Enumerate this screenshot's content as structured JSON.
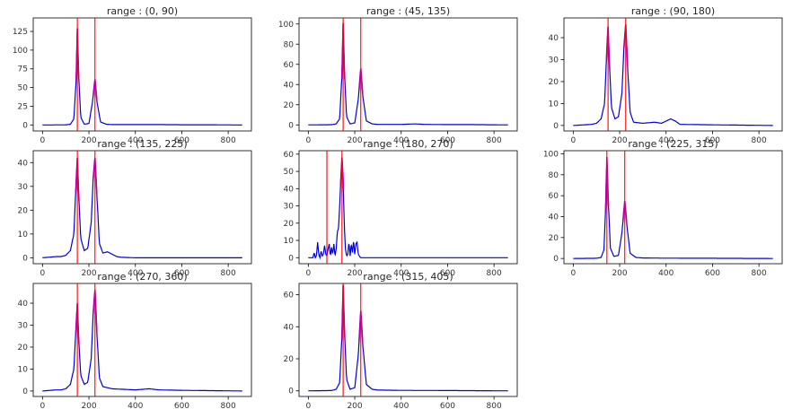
{
  "chart_data": [
    {
      "type": "line",
      "title": "range : (0, 90)",
      "xlim": [
        -40,
        900
      ],
      "ylim": [
        -8,
        143
      ],
      "xticks": [
        0,
        200,
        400,
        600,
        800
      ],
      "yticks": [
        0,
        25,
        50,
        75,
        100,
        125
      ],
      "vlines": [
        150,
        226
      ],
      "peaks": [
        {
          "x": 150,
          "y": 129,
          "w": 7
        },
        {
          "x": 226,
          "y": 61,
          "w": 8
        }
      ],
      "bumps": [],
      "x": [
        0,
        100,
        120,
        135,
        145,
        150,
        155,
        165,
        180,
        200,
        215,
        226,
        235,
        250,
        275,
        300,
        400,
        500,
        600,
        700,
        860
      ],
      "y": [
        0,
        0.2,
        1,
        8,
        60,
        129,
        70,
        10,
        1,
        2,
        30,
        61,
        30,
        4,
        1,
        0.5,
        0.5,
        0.5,
        0.3,
        0.3,
        0
      ]
    },
    {
      "type": "line",
      "title": "range : (45, 135)",
      "xlim": [
        -40,
        900
      ],
      "ylim": [
        -6,
        106
      ],
      "xticks": [
        0,
        200,
        400,
        600,
        800
      ],
      "yticks": [
        0,
        20,
        40,
        60,
        80,
        100
      ],
      "vlines": [
        150,
        226
      ],
      "peaks": [
        {
          "x": 150,
          "y": 101,
          "w": 7
        },
        {
          "x": 226,
          "y": 56,
          "w": 8
        }
      ],
      "bumps": [
        {
          "x": 460,
          "y": 1,
          "w": 20
        }
      ],
      "x": [
        0,
        100,
        120,
        135,
        145,
        150,
        155,
        165,
        180,
        200,
        215,
        226,
        235,
        250,
        275,
        300,
        400,
        460,
        500,
        600,
        700,
        860
      ],
      "y": [
        0,
        0.2,
        1,
        6,
        50,
        101,
        55,
        8,
        1,
        2,
        25,
        56,
        28,
        4,
        1,
        0.5,
        0.5,
        1,
        0.5,
        0.3,
        0.3,
        0
      ]
    },
    {
      "type": "line",
      "title": "range : (90, 180)",
      "xlim": [
        -40,
        900
      ],
      "ylim": [
        -2.5,
        49
      ],
      "xticks": [
        0,
        200,
        400,
        600,
        800
      ],
      "yticks": [
        0,
        10,
        20,
        30,
        40
      ],
      "vlines": [
        150,
        226
      ],
      "peaks": [
        {
          "x": 150,
          "y": 45,
          "w": 7
        },
        {
          "x": 226,
          "y": 46,
          "w": 8
        }
      ],
      "bumps": [
        {
          "x": 95,
          "y": 0.8,
          "w": 8
        },
        {
          "x": 350,
          "y": 0.8,
          "w": 12
        },
        {
          "x": 420,
          "y": 2.5,
          "w": 14
        }
      ],
      "x": [
        0,
        80,
        100,
        120,
        135,
        145,
        150,
        155,
        165,
        180,
        195,
        210,
        218,
        226,
        235,
        245,
        260,
        300,
        350,
        380,
        400,
        420,
        440,
        460,
        600,
        860
      ],
      "y": [
        0,
        0.5,
        1,
        3,
        10,
        35,
        45,
        30,
        8,
        3,
        4,
        15,
        35,
        46,
        25,
        6,
        1.5,
        1,
        1.5,
        1,
        2,
        3,
        2,
        0.5,
        0.3,
        0
      ]
    },
    {
      "type": "line",
      "title": "range : (135, 225)",
      "xlim": [
        -40,
        900
      ],
      "ylim": [
        -2.5,
        45
      ],
      "xticks": [
        0,
        200,
        400,
        600,
        800
      ],
      "yticks": [
        0,
        10,
        20,
        30,
        40
      ],
      "vlines": [
        150,
        226
      ],
      "peaks": [
        {
          "x": 150,
          "y": 42,
          "w": 7
        },
        {
          "x": 226,
          "y": 42,
          "w": 8
        }
      ],
      "bumps": [
        {
          "x": 290,
          "y": 2,
          "w": 15
        }
      ],
      "x": [
        0,
        60,
        80,
        100,
        120,
        135,
        145,
        150,
        155,
        165,
        180,
        195,
        210,
        218,
        226,
        235,
        245,
        260,
        280,
        300,
        320,
        340,
        400,
        600,
        860
      ],
      "y": [
        0,
        0.5,
        0.5,
        1,
        3,
        10,
        32,
        42,
        28,
        8,
        3,
        4,
        15,
        33,
        42,
        25,
        6,
        2,
        2.5,
        1.5,
        0.5,
        0.2,
        0,
        0,
        0
      ]
    },
    {
      "type": "line",
      "title": "range : (180, 270)",
      "xlim": [
        -40,
        900
      ],
      "ylim": [
        -3.5,
        62
      ],
      "xticks": [
        0,
        200,
        400,
        600,
        800
      ],
      "yticks": [
        0,
        10,
        20,
        30,
        40,
        50,
        60
      ],
      "vlines": [
        80,
        145
      ],
      "peaks": [
        {
          "x": 145,
          "y": 58,
          "w": 6
        }
      ],
      "bumps": [],
      "x": [
        0,
        20,
        25,
        30,
        35,
        40,
        45,
        50,
        55,
        60,
        65,
        70,
        75,
        80,
        85,
        90,
        95,
        100,
        105,
        110,
        115,
        120,
        125,
        130,
        135,
        140,
        145,
        150,
        155,
        160,
        165,
        170,
        175,
        180,
        185,
        190,
        195,
        200,
        205,
        210,
        215,
        220,
        225,
        230,
        240,
        250,
        300,
        400,
        600,
        860
      ],
      "y": [
        0,
        0,
        3,
        0,
        1,
        9,
        2,
        0,
        4,
        1,
        2,
        7,
        2,
        1,
        5,
        8,
        1,
        6,
        2,
        8,
        1,
        5,
        15,
        17,
        30,
        45,
        58,
        45,
        18,
        5,
        1,
        2,
        9,
        1,
        8,
        3,
        10,
        2,
        8,
        9,
        2,
        1,
        0,
        0,
        0,
        0,
        0,
        0,
        0,
        0
      ]
    },
    {
      "type": "line",
      "title": "range : (225, 315)",
      "xlim": [
        -40,
        900
      ],
      "ylim": [
        -5,
        103
      ],
      "xticks": [
        0,
        200,
        400,
        600,
        800
      ],
      "yticks": [
        0,
        20,
        40,
        60,
        80,
        100
      ],
      "vlines": [
        145,
        222
      ],
      "peaks": [
        {
          "x": 145,
          "y": 97,
          "w": 7
        },
        {
          "x": 222,
          "y": 55,
          "w": 8
        }
      ],
      "bumps": [],
      "x": [
        0,
        100,
        120,
        132,
        140,
        145,
        150,
        160,
        175,
        195,
        210,
        222,
        232,
        245,
        270,
        300,
        400,
        600,
        860
      ],
      "y": [
        0,
        0.2,
        1,
        8,
        50,
        97,
        60,
        10,
        2,
        3,
        25,
        55,
        30,
        5,
        1,
        0.5,
        0.3,
        0.2,
        0
      ]
    },
    {
      "type": "line",
      "title": "range : (270, 360)",
      "xlim": [
        -40,
        900
      ],
      "ylim": [
        -2.5,
        49
      ],
      "xticks": [
        0,
        200,
        400,
        600,
        800
      ],
      "yticks": [
        0,
        10,
        20,
        30,
        40
      ],
      "vlines": [
        150,
        226
      ],
      "peaks": [
        {
          "x": 150,
          "y": 40,
          "w": 7
        },
        {
          "x": 226,
          "y": 46,
          "w": 8
        }
      ],
      "bumps": [
        {
          "x": 460,
          "y": 0.8,
          "w": 25
        }
      ],
      "x": [
        0,
        60,
        80,
        100,
        120,
        135,
        145,
        150,
        155,
        165,
        180,
        195,
        210,
        218,
        226,
        235,
        245,
        260,
        300,
        400,
        460,
        500,
        600,
        860
      ],
      "y": [
        0,
        0.5,
        0.5,
        1,
        3,
        10,
        30,
        40,
        25,
        7,
        3,
        4,
        15,
        35,
        46,
        25,
        6,
        2,
        1,
        0.5,
        1,
        0.5,
        0.3,
        0
      ]
    },
    {
      "type": "line",
      "title": "range : (315, 405)",
      "xlim": [
        -40,
        900
      ],
      "ylim": [
        -3.5,
        67
      ],
      "xticks": [
        0,
        200,
        400,
        600,
        800
      ],
      "yticks": [
        0,
        20,
        40,
        60
      ],
      "vlines": [
        150,
        226
      ],
      "peaks": [
        {
          "x": 150,
          "y": 66,
          "w": 7
        },
        {
          "x": 226,
          "y": 50,
          "w": 8
        }
      ],
      "bumps": [],
      "x": [
        0,
        100,
        120,
        135,
        145,
        150,
        155,
        165,
        180,
        200,
        215,
        226,
        235,
        250,
        275,
        300,
        400,
        600,
        860
      ],
      "y": [
        0,
        0.2,
        1,
        5,
        35,
        66,
        40,
        7,
        1,
        2,
        22,
        50,
        28,
        4,
        1,
        0.5,
        0.3,
        0.2,
        0
      ]
    }
  ]
}
